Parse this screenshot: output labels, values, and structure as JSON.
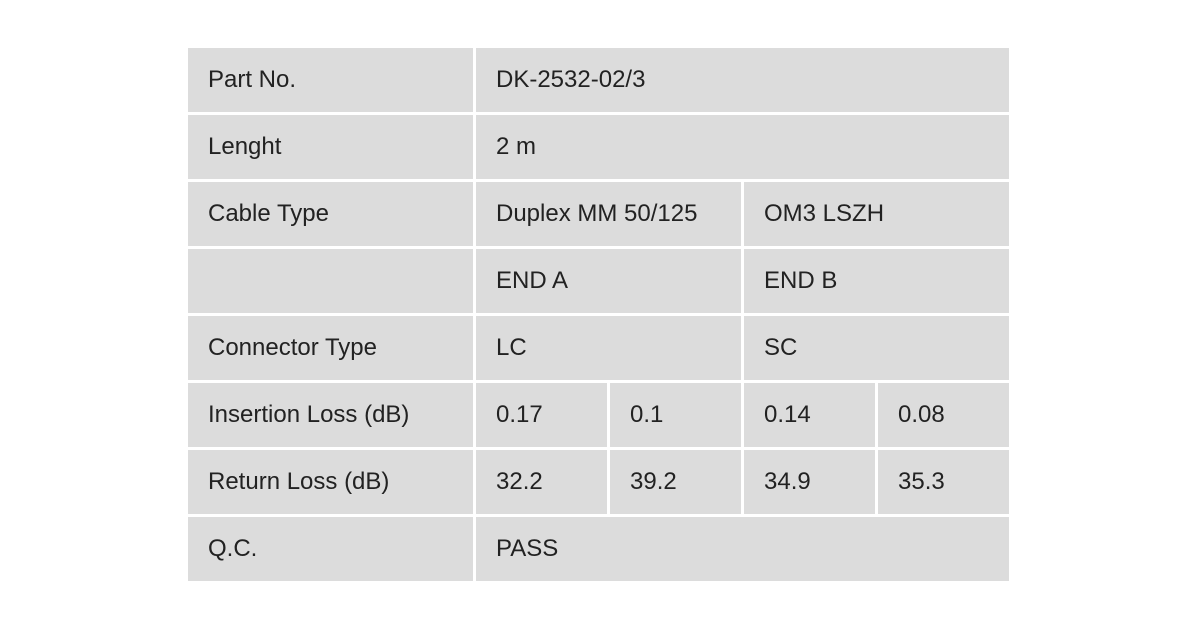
{
  "table": {
    "rows": [
      [
        "Part No.",
        "DK-2532-02/3"
      ],
      [
        "Lenght",
        "2 m"
      ],
      [
        "Cable Type",
        "Duplex MM 50/125",
        "OM3 LSZH"
      ],
      [
        "END A",
        "END B"
      ],
      [
        "Connector Type",
        "LC",
        "SC"
      ],
      [
        "Insertion Loss (dB)",
        "0.17",
        "0.1",
        "0.14",
        "0.08"
      ],
      [
        "Return Loss (dB)",
        "32.2",
        "39.2",
        "34.9",
        "35.3"
      ],
      [
        "Q.C.",
        "PASS"
      ]
    ]
  }
}
